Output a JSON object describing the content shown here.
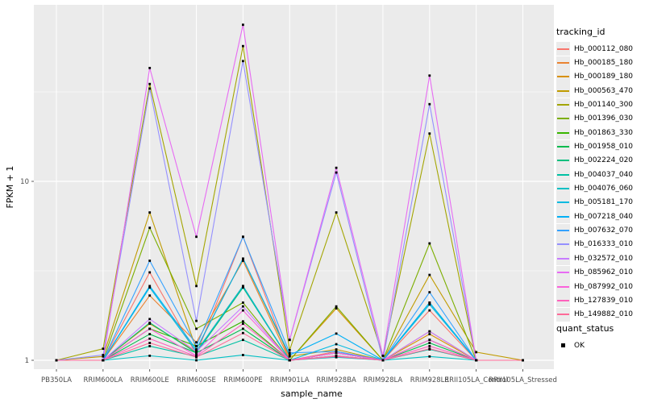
{
  "figure": {
    "y_tick_labels": [
      "1",
      "10"
    ],
    "x_tick_labels": [
      "PB350LA",
      "RRIM600LA",
      "RRIM600LE",
      "RRIM600SE",
      "RRIM600PE",
      "RRIM901LA",
      "RRIM928BA",
      "RRIM928LA",
      "RRIM928LE",
      "RRII105LA_Control",
      "RRII105LA_Stressed"
    ]
  },
  "legend": {
    "tracking_title": "tracking_id",
    "quant_title": "quant_status",
    "quant_items": [
      {
        "label": "OK"
      }
    ]
  },
  "chart_data": {
    "type": "line",
    "title": "",
    "xlabel": "sample_name",
    "ylabel": "FPKM + 1",
    "y_scale": "log10",
    "y_ticks": [
      1,
      10
    ],
    "y_minor_ticks": [
      3.162,
      31.62
    ],
    "ylim": [
      0.89,
      97
    ],
    "grid": true,
    "legend_position": "right",
    "panel_bg": "#ebebeb",
    "grid_color": "#ffffff",
    "point_color": "#000000",
    "axis_text_color": "#4d4d4d",
    "tick_color": "#333333",
    "categories": [
      "PB350LA",
      "RRIM600LA",
      "RRIM600LE",
      "RRIM600SE",
      "RRIM600PE",
      "RRIM901LA",
      "RRIM928BA",
      "RRIM928LA",
      "RRIM928LE",
      "RRII105LA_Control",
      "RRII105LA_Stressed"
    ],
    "series": [
      {
        "name": "Hb_000112_080",
        "color": "#F8766D",
        "values": [
          1.0,
          1.0,
          3.1,
          1.08,
          4.9,
          1.0,
          1.12,
          1.0,
          1.9,
          1.0,
          1.0
        ]
      },
      {
        "name": "Hb_000185_180",
        "color": "#EA8331",
        "values": [
          1.0,
          1.0,
          2.3,
          1.26,
          3.6,
          1.0,
          1.1,
          1.0,
          1.45,
          1.0,
          1.0
        ]
      },
      {
        "name": "Hb_000189_180",
        "color": "#D89000",
        "values": [
          1.0,
          1.0,
          1.6,
          1.12,
          2.6,
          1.0,
          1.95,
          1.0,
          1.4,
          1.0,
          1.0
        ]
      },
      {
        "name": "Hb_000563_470",
        "color": "#C09B00",
        "values": [
          1.0,
          1.05,
          6.7,
          1.15,
          3.7,
          1.05,
          1.15,
          1.0,
          3.0,
          1.11,
          1.0
        ]
      },
      {
        "name": "Hb_001140_300",
        "color": "#A3A500",
        "values": [
          1.0,
          1.16,
          35.0,
          2.6,
          57.0,
          1.14,
          6.7,
          1.06,
          18.5,
          1.0,
          1.0
        ]
      },
      {
        "name": "Hb_001396_030",
        "color": "#7CAE00",
        "values": [
          1.0,
          1.0,
          5.5,
          1.5,
          2.1,
          1.0,
          2.0,
          1.0,
          4.5,
          1.0,
          1.0
        ]
      },
      {
        "name": "Hb_001863_330",
        "color": "#39B600",
        "values": [
          1.0,
          1.0,
          1.5,
          1.2,
          1.65,
          1.0,
          1.1,
          1.0,
          1.3,
          1.0,
          1.0
        ]
      },
      {
        "name": "Hb_001958_010",
        "color": "#00BB4E",
        "values": [
          1.0,
          1.0,
          1.4,
          1.1,
          1.5,
          1.0,
          1.06,
          1.0,
          1.25,
          1.0,
          1.0
        ]
      },
      {
        "name": "Hb_002224_020",
        "color": "#00BF7D",
        "values": [
          1.0,
          1.0,
          1.62,
          1.1,
          2.55,
          1.0,
          1.1,
          1.0,
          2.1,
          1.0,
          1.0
        ]
      },
      {
        "name": "Hb_004037_040",
        "color": "#00C1A3",
        "values": [
          1.0,
          1.0,
          1.2,
          1.05,
          1.3,
          1.0,
          1.05,
          1.0,
          1.15,
          1.0,
          1.0
        ]
      },
      {
        "name": "Hb_004076_060",
        "color": "#00BFC4",
        "values": [
          1.0,
          1.0,
          1.06,
          1.0,
          1.07,
          1.0,
          1.04,
          1.0,
          1.05,
          1.0,
          1.0
        ]
      },
      {
        "name": "Hb_005181_170",
        "color": "#00BAE0",
        "values": [
          1.0,
          1.0,
          2.55,
          1.12,
          2.6,
          1.0,
          1.23,
          1.0,
          2.05,
          1.0,
          1.0
        ]
      },
      {
        "name": "Hb_007218_040",
        "color": "#00B0F6",
        "values": [
          1.0,
          1.0,
          2.6,
          1.15,
          3.7,
          1.07,
          1.41,
          1.0,
          2.1,
          1.0,
          1.0
        ]
      },
      {
        "name": "Hb_007632_070",
        "color": "#35A2FF",
        "values": [
          1.0,
          1.0,
          3.6,
          1.2,
          4.9,
          1.1,
          1.12,
          1.0,
          2.4,
          1.0,
          1.0
        ]
      },
      {
        "name": "Hb_016333_010",
        "color": "#9590FF",
        "values": [
          1.0,
          1.07,
          33.0,
          1.66,
          47.0,
          1.3,
          11.2,
          1.0,
          27.0,
          1.0,
          1.0
        ]
      },
      {
        "name": "Hb_032572_010",
        "color": "#C77CFF",
        "values": [
          1.0,
          1.0,
          1.7,
          1.12,
          2.0,
          1.0,
          1.1,
          1.0,
          1.45,
          1.0,
          1.0
        ]
      },
      {
        "name": "Hb_085962_010",
        "color": "#E76BF3",
        "values": [
          1.0,
          1.0,
          43.0,
          4.9,
          75.0,
          1.3,
          11.9,
          1.06,
          39.0,
          1.0,
          1.0
        ]
      },
      {
        "name": "Hb_087992_010",
        "color": "#FA62DB",
        "values": [
          1.0,
          1.0,
          1.5,
          1.06,
          1.9,
          1.0,
          1.1,
          1.0,
          1.3,
          1.0,
          1.0
        ]
      },
      {
        "name": "Hb_127839_010",
        "color": "#FF62BC",
        "values": [
          1.0,
          1.0,
          1.32,
          1.05,
          1.6,
          1.0,
          1.06,
          1.0,
          1.2,
          1.0,
          1.0
        ]
      },
      {
        "name": "Hb_149882_010",
        "color": "#FF6A98",
        "values": [
          1.0,
          1.0,
          1.25,
          1.04,
          1.42,
          1.0,
          1.05,
          1.0,
          1.16,
          1.0,
          1.0
        ]
      }
    ]
  }
}
